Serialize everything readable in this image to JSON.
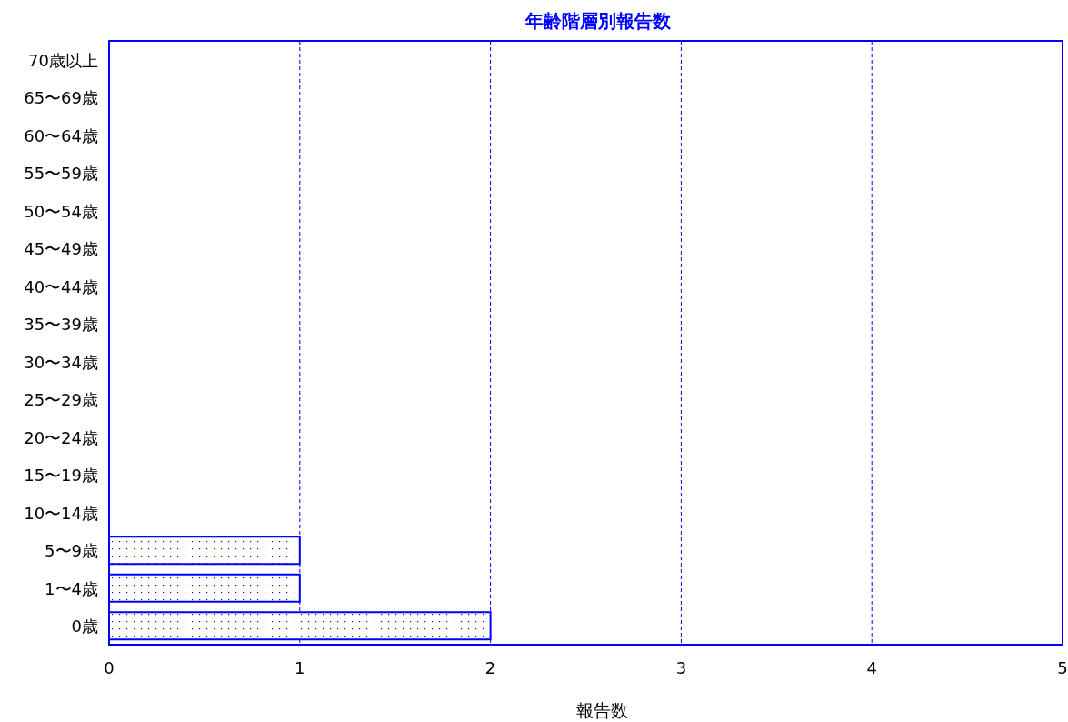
{
  "chart_data": {
    "type": "bar",
    "orientation": "horizontal",
    "title": "年齢階層別報告数",
    "xlabel": "報告数",
    "categories": [
      "70歳以上",
      "65〜69歳",
      "60〜64歳",
      "55〜59歳",
      "50〜54歳",
      "45〜49歳",
      "40〜44歳",
      "35〜39歳",
      "30〜34歳",
      "25〜29歳",
      "20〜24歳",
      "15〜19歳",
      "10〜14歳",
      "5〜9歳",
      "1〜4歳",
      "0歳"
    ],
    "values": [
      0,
      0,
      0,
      0,
      0,
      0,
      0,
      0,
      0,
      0,
      0,
      0,
      0,
      1,
      1,
      2
    ],
    "color": "#0000ff",
    "xlim": [
      0,
      5
    ],
    "xticks": [
      0,
      1,
      2,
      3,
      4,
      5
    ],
    "grid": "x"
  }
}
